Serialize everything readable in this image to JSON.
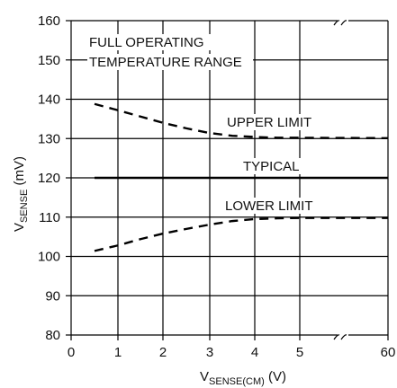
{
  "chart_data": {
    "type": "line",
    "title": "",
    "xlabel_main": "V",
    "xlabel_sub": "SENSE(CM)",
    "xlabel_unit": " (V)",
    "ylabel_main": "V",
    "ylabel_sub": "SENSE",
    "ylabel_unit": " (mV)",
    "x_ticks": [
      "0",
      "1",
      "2",
      "3",
      "4",
      "5",
      "60"
    ],
    "y_ticks": [
      "80",
      "90",
      "100",
      "110",
      "120",
      "130",
      "140",
      "150",
      "160"
    ],
    "xlim": [
      0,
      6
    ],
    "ylim": [
      80,
      160
    ],
    "x_axis_break": "between 5 and 60",
    "grid": true,
    "annotations": {
      "conditions_line1": "FULL OPERATING",
      "conditions_line2": "TEMPERATURE RANGE",
      "upper_label": "UPPER LIMIT",
      "typical_label": "TYPICAL",
      "lower_label": "LOWER LIMIT"
    },
    "series": [
      {
        "style": "dashed",
        "x": [
          0.5,
          1,
          1.5,
          2,
          2.5,
          3,
          3.5,
          4,
          4.5,
          5,
          60
        ],
        "y": [
          138.8,
          137.2,
          135.6,
          134.0,
          132.6,
          131.4,
          130.7,
          130.4,
          130.2,
          130.2,
          130.1
        ]
      },
      {
        "style": "solid",
        "x": [
          0.5,
          60
        ],
        "y": [
          120,
          120
        ]
      },
      {
        "style": "dashed",
        "x": [
          0.5,
          1,
          1.5,
          2,
          2.5,
          3,
          3.5,
          4,
          4.5,
          5,
          60
        ],
        "y": [
          101.4,
          102.8,
          104.4,
          105.8,
          107.0,
          108.1,
          109.0,
          109.5,
          109.7,
          109.8,
          109.8
        ]
      }
    ]
  }
}
